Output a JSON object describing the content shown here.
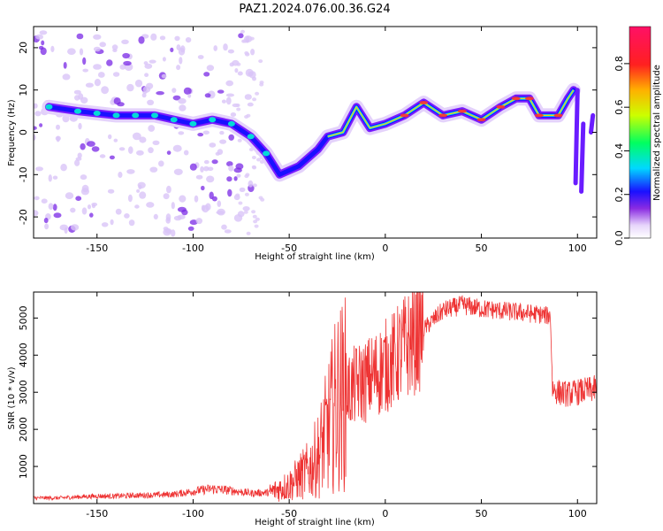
{
  "title": "PAZ1.2024.076.00.36.G24",
  "chart_data": [
    {
      "type": "heatmap",
      "xlabel": "Height of straight line (km)",
      "ylabel": "Frequency (Hz)",
      "xlim": [
        -183,
        110
      ],
      "ylim": [
        -25,
        25
      ],
      "xticks": [
        -150,
        -100,
        -50,
        0,
        50,
        100
      ],
      "yticks": [
        -20,
        -10,
        0,
        10,
        20
      ],
      "colorbar": {
        "label": "Normalized spectral amplitude",
        "ticks": [
          0.0,
          0.2,
          0.4,
          0.6,
          0.8
        ],
        "range": [
          0,
          0.97
        ]
      },
      "ridge": [
        {
          "x": -175,
          "y": 6
        },
        {
          "x": -160,
          "y": 5
        },
        {
          "x": -150,
          "y": 4.5
        },
        {
          "x": -140,
          "y": 4
        },
        {
          "x": -130,
          "y": 4
        },
        {
          "x": -120,
          "y": 4
        },
        {
          "x": -110,
          "y": 3
        },
        {
          "x": -100,
          "y": 2
        },
        {
          "x": -90,
          "y": 3
        },
        {
          "x": -80,
          "y": 2
        },
        {
          "x": -70,
          "y": -1
        },
        {
          "x": -62,
          "y": -5
        },
        {
          "x": -55,
          "y": -10
        },
        {
          "x": -45,
          "y": -8
        },
        {
          "x": -35,
          "y": -4
        },
        {
          "x": -30,
          "y": -1
        },
        {
          "x": -22,
          "y": 0
        },
        {
          "x": -15,
          "y": 6
        },
        {
          "x": -8,
          "y": 1
        },
        {
          "x": 0,
          "y": 2
        },
        {
          "x": 10,
          "y": 4
        },
        {
          "x": 20,
          "y": 7
        },
        {
          "x": 30,
          "y": 4
        },
        {
          "x": 40,
          "y": 5
        },
        {
          "x": 50,
          "y": 3
        },
        {
          "x": 60,
          "y": 6
        },
        {
          "x": 68,
          "y": 8
        },
        {
          "x": 75,
          "y": 8
        },
        {
          "x": 80,
          "y": 4
        },
        {
          "x": 90,
          "y": 4
        },
        {
          "x": 95,
          "y": 8
        },
        {
          "x": 98,
          "y": 10
        }
      ]
    },
    {
      "type": "line",
      "xlabel": "Height of straight line (km)",
      "ylabel": "SNR (10 * v/v)",
      "xlim": [
        -183,
        110
      ],
      "ylim": [
        0,
        5700
      ],
      "xticks": [
        -150,
        -100,
        -50,
        0,
        50,
        100
      ],
      "yticks": [
        1000,
        2000,
        3000,
        4000,
        5000
      ],
      "color": "#ee3333",
      "series": [
        {
          "x": [
            -183,
            -170,
            -160,
            -150,
            -140,
            -130,
            -120,
            -110,
            -100,
            -90,
            -80,
            -70,
            -60,
            -50,
            -45,
            -40,
            -35,
            -30,
            -25,
            -20,
            -15,
            -10,
            -5,
            0,
            5,
            10,
            20,
            30,
            40,
            50,
            60,
            70,
            80,
            86,
            87,
            90,
            95,
            100,
            105,
            110
          ],
          "y": [
            150,
            150,
            180,
            200,
            200,
            220,
            230,
            250,
            330,
            400,
            350,
            280,
            300,
            500,
            700,
            900,
            1300,
            2000,
            2800,
            3000,
            3200,
            3300,
            3500,
            3700,
            3900,
            4200,
            4700,
            5200,
            5350,
            5250,
            5200,
            5150,
            5100,
            5050,
            3100,
            3000,
            2950,
            3000,
            3050,
            3100
          ]
        }
      ]
    }
  ]
}
